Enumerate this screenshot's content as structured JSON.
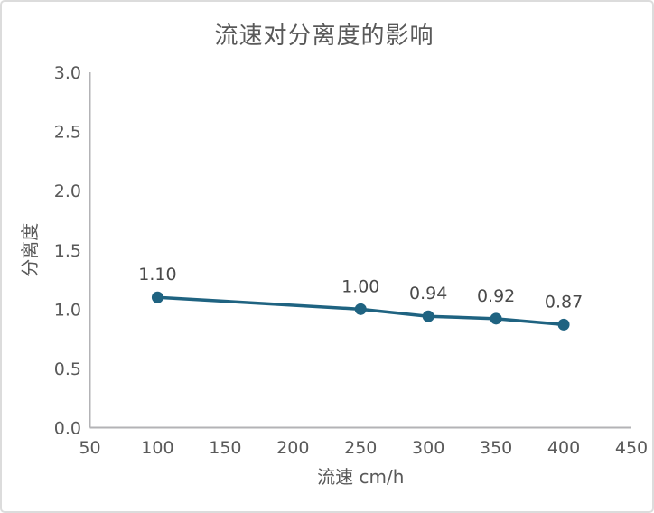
{
  "chart_data": {
    "type": "line",
    "title": "流速对分离度的影响",
    "xlabel": "流速 cm/h",
    "ylabel": "分离度",
    "x": [
      100,
      250,
      300,
      350,
      400
    ],
    "y": [
      1.1,
      1.0,
      0.94,
      0.92,
      0.87
    ],
    "point_labels": [
      "1.10",
      "1.00",
      "0.94",
      "0.92",
      "0.87"
    ],
    "xlim": [
      50,
      450
    ],
    "ylim": [
      0,
      3
    ],
    "xticks": [
      50,
      100,
      150,
      200,
      250,
      300,
      350,
      400,
      450
    ],
    "xtick_labels": [
      "50",
      "100",
      "150",
      "200",
      "250",
      "300",
      "350",
      "400",
      "450"
    ],
    "yticks": [
      0,
      0.5,
      1,
      1.5,
      2,
      2.5,
      3
    ],
    "ytick_labels": [
      "0.0",
      "0.5",
      "1.0",
      "1.5",
      "2.0",
      "2.5",
      "3.0"
    ],
    "grid": false,
    "legend": "none",
    "colors": {
      "line": "#1f6381",
      "marker": "#1f6381",
      "axis": "#b3b3b6",
      "tick_text": "#595959",
      "title_text": "#595959",
      "axis_title_text": "#595959",
      "point_label_text": "#4a4a4a"
    }
  }
}
